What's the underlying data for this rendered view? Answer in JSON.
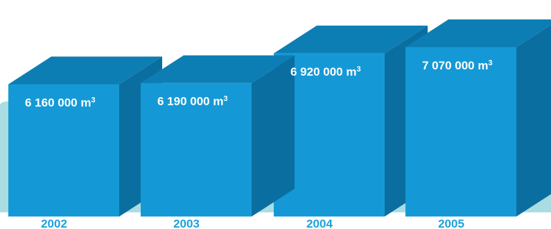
{
  "chart_data": {
    "type": "bar",
    "style": "3d-box",
    "title": "",
    "xlabel": "",
    "ylabel": "",
    "categories": [
      "2002",
      "2003",
      "2004",
      "2005"
    ],
    "values": [
      6160000,
      6190000,
      6920000,
      7070000
    ],
    "unit": "m",
    "unit_superscript": "3",
    "labels": [
      "6 160 000",
      "6 190 000",
      "6 920 000",
      "7 070 000"
    ],
    "grid": false,
    "legend": "none"
  },
  "colors": {
    "front": "#1599d6",
    "top": "#0d7eb4",
    "side": "#0b6ea0",
    "floor": "#a9dde2",
    "year_text": "#1ba2dc",
    "value_text": "#ffffff"
  }
}
